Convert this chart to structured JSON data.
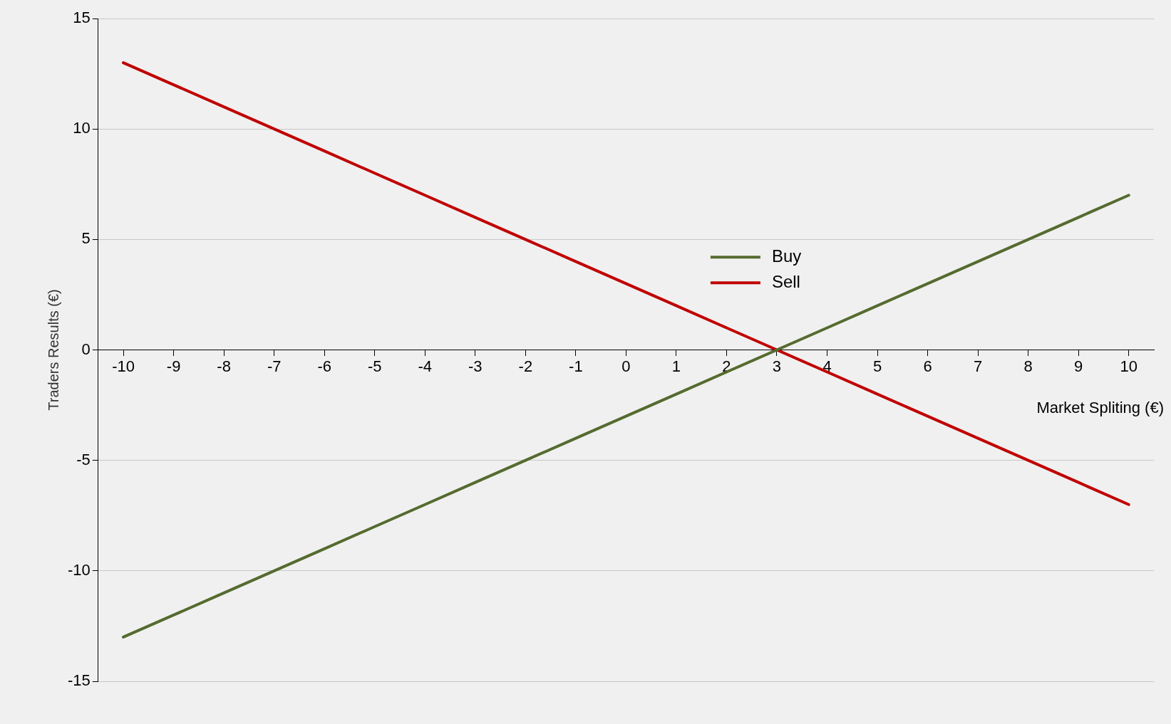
{
  "chart_data": {
    "type": "line",
    "xlabel": "Market Spliting (€)",
    "ylabel": "Traders Results (€)",
    "categories": [
      "-10",
      "-9",
      "-8",
      "-7",
      "-6",
      "-5",
      "-4",
      "-3",
      "-2",
      "-1",
      "0",
      "1",
      "2",
      "3",
      "4",
      "5",
      "6",
      "7",
      "8",
      "9",
      "10"
    ],
    "series": [
      {
        "name": "Buy",
        "color": "#556b2f",
        "values": [
          -13,
          -12,
          -11,
          -10,
          -9,
          -8,
          -7,
          -6,
          -5,
          -4,
          -3,
          -2,
          -1,
          0,
          1,
          2,
          3,
          4,
          5,
          6,
          7
        ]
      },
      {
        "name": "Sell",
        "color": "#c00000",
        "values": [
          13,
          12,
          11,
          10,
          9,
          8,
          7,
          6,
          5,
          4,
          3,
          2,
          1,
          0,
          -1,
          -2,
          -3,
          -4,
          -5,
          -6,
          -7
        ]
      }
    ],
    "ylim": [
      -15,
      15
    ],
    "yticks": [
      -15,
      -10,
      -5,
      0,
      5,
      10,
      15
    ],
    "grid": "y",
    "legend": "center",
    "marker": "none",
    "line_style": "solid"
  }
}
